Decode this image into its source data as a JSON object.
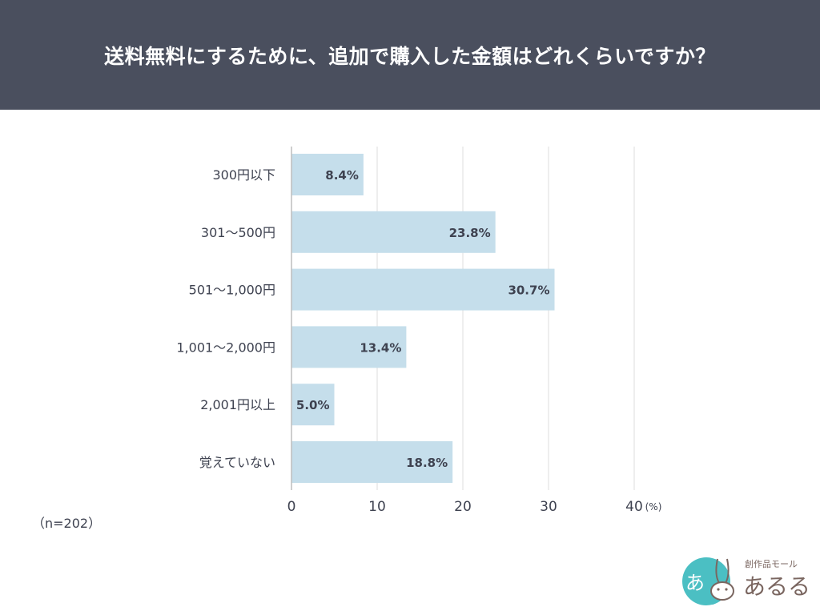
{
  "header": {
    "title": "送料無料にするために、追加で購入した金額はどれくらいですか？"
  },
  "chart_data": {
    "type": "bar",
    "orientation": "horizontal",
    "title": "送料無料にするために、追加で購入した金額はどれくらいですか？",
    "categories": [
      "300円以下",
      "301～500円",
      "501～1,000円",
      "1,001～2,000円",
      "2,001円以上",
      "覚えていない"
    ],
    "values": [
      8.4,
      23.8,
      30.7,
      13.4,
      5.0,
      18.8
    ],
    "data_labels": [
      "8.4%",
      "23.8%",
      "30.7%",
      "13.4%",
      "5.0%",
      "18.8%"
    ],
    "xlim": [
      0,
      40
    ],
    "x_ticks": [
      "0",
      "10",
      "20",
      "30",
      "40"
    ],
    "x_unit": "(%)",
    "grid": true,
    "bar_color": "#c5deeb",
    "label_color": "#3e4250",
    "grid_color": "#dcdcdc"
  },
  "footnote": "（n=202）",
  "logo": {
    "text": "創作品モール あるる",
    "mark": "あ！"
  }
}
